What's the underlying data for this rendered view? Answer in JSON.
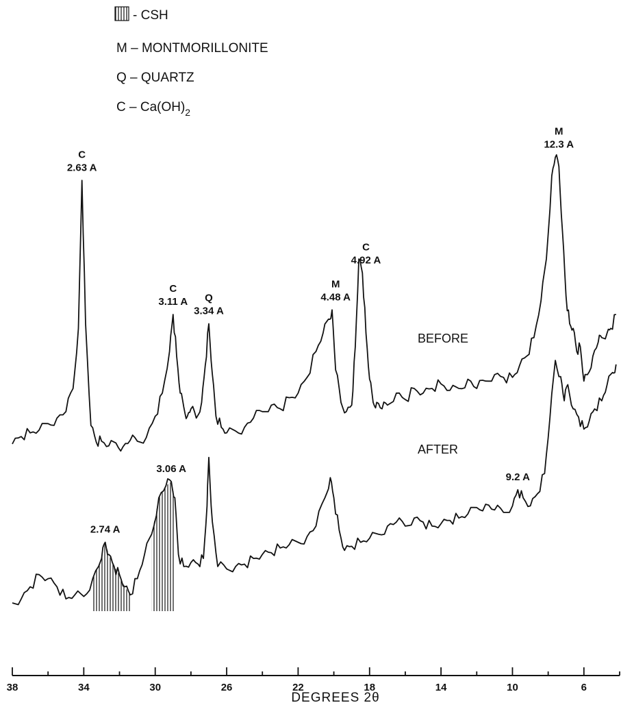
{
  "chart_data": {
    "type": "line",
    "title": "",
    "xlabel": "DEGREES 2θ",
    "ylabel": "",
    "xlim": [
      38,
      4
    ],
    "x_direction": "decreasing",
    "grid": false,
    "legend": {
      "placement": "top-left",
      "items": [
        {
          "symbol": "hatch",
          "text": "- CSH"
        },
        {
          "symbol": "",
          "text": "M – MONTMORILLONITE"
        },
        {
          "symbol": "",
          "text": "Q – QUARTZ"
        },
        {
          "symbol": "",
          "text": "C – Ca(OH)",
          "subscript": "2"
        }
      ]
    },
    "x_ticks": [
      38,
      34,
      30,
      26,
      22,
      18,
      14,
      10,
      6
    ],
    "series": [
      {
        "name": "BEFORE",
        "x": [
          38.0,
          37.5,
          37.0,
          36.5,
          36.0,
          35.5,
          35.0,
          34.6,
          34.3,
          34.1,
          33.9,
          33.6,
          33.3,
          33.0,
          32.6,
          32.2,
          31.8,
          31.4,
          31.0,
          30.5,
          30.0,
          29.6,
          29.2,
          29.0,
          28.8,
          28.6,
          28.4,
          28.2,
          28.0,
          27.7,
          27.4,
          27.2,
          27.0,
          26.8,
          26.6,
          26.3,
          26.0,
          25.5,
          25.0,
          24.5,
          24.0,
          23.5,
          23.0,
          22.5,
          22.0,
          21.5,
          21.0,
          20.6,
          20.3,
          20.1,
          19.9,
          19.6,
          19.3,
          19.0,
          18.8,
          18.6,
          18.4,
          18.2,
          18.0,
          17.8,
          17.6,
          17.3,
          17.0,
          16.5,
          16.0,
          15.5,
          15.0,
          14.5,
          14.0,
          13.5,
          13.0,
          12.5,
          12.0,
          11.5,
          11.0,
          10.5,
          10.0,
          9.6,
          9.2,
          8.8,
          8.4,
          8.1,
          7.8,
          7.6,
          7.4,
          7.2,
          7.0,
          6.8,
          6.6,
          6.4,
          6.2,
          6.0,
          5.8,
          5.5,
          5.2,
          5.0,
          4.7,
          4.5,
          4.2
        ],
        "y": [
          0.0,
          0.08,
          0.12,
          0.15,
          0.22,
          0.28,
          0.35,
          0.6,
          1.25,
          2.85,
          1.3,
          0.2,
          0.02,
          0.03,
          -0.02,
          0.01,
          -0.03,
          0.04,
          0.03,
          0.07,
          0.3,
          0.55,
          1.0,
          1.4,
          0.95,
          0.55,
          0.4,
          0.3,
          0.38,
          0.28,
          0.45,
          0.85,
          1.3,
          0.75,
          0.3,
          0.18,
          0.12,
          0.14,
          0.18,
          0.28,
          0.35,
          0.42,
          0.38,
          0.5,
          0.55,
          0.72,
          1.0,
          1.2,
          1.35,
          1.45,
          0.8,
          0.45,
          0.35,
          0.42,
          1.05,
          2.0,
          1.85,
          1.2,
          0.7,
          0.45,
          0.45,
          0.38,
          0.42,
          0.55,
          0.48,
          0.6,
          0.55,
          0.6,
          0.65,
          0.58,
          0.6,
          0.7,
          0.6,
          0.68,
          0.75,
          0.72,
          0.72,
          0.85,
          0.95,
          1.15,
          1.55,
          2.0,
          2.9,
          3.1,
          3.0,
          2.3,
          1.6,
          1.3,
          1.25,
          1.0,
          1.05,
          0.68,
          0.75,
          0.95,
          1.1,
          1.15,
          1.2,
          1.25,
          1.4
        ],
        "annotations": [
          {
            "x": 34.1,
            "labels": [
              "C",
              "2.63 A"
            ]
          },
          {
            "x": 29.0,
            "labels": [
              "C",
              "3.11 A"
            ]
          },
          {
            "x": 27.0,
            "labels": [
              "Q",
              "3.34 A"
            ]
          },
          {
            "x": 19.9,
            "labels": [
              "M",
              "4.48 A"
            ]
          },
          {
            "x": 18.2,
            "labels": [
              "C",
              "4.92 A"
            ]
          },
          {
            "x": 7.4,
            "labels": [
              "M",
              "12.3 A"
            ]
          }
        ]
      },
      {
        "name": "AFTER",
        "x": [
          38.0,
          37.5,
          37.0,
          36.5,
          36.0,
          35.5,
          35.0,
          34.5,
          34.0,
          33.5,
          33.0,
          32.8,
          32.6,
          32.3,
          32.0,
          31.7,
          31.4,
          31.0,
          30.6,
          30.2,
          29.8,
          29.4,
          29.1,
          28.9,
          28.7,
          28.4,
          28.0,
          27.6,
          27.3,
          27.1,
          27.0,
          26.8,
          26.5,
          26.0,
          25.5,
          25.0,
          24.5,
          24.0,
          23.5,
          23.0,
          22.5,
          22.0,
          21.5,
          21.0,
          20.5,
          20.2,
          20.0,
          19.7,
          19.4,
          19.0,
          18.5,
          18.0,
          17.5,
          17.0,
          16.5,
          16.0,
          15.5,
          15.0,
          14.5,
          14.0,
          13.5,
          13.0,
          12.5,
          12.0,
          11.5,
          11.0,
          10.5,
          10.0,
          9.7,
          9.4,
          9.0,
          8.6,
          8.2,
          7.9,
          7.6,
          7.3,
          7.1,
          6.9,
          6.6,
          6.3,
          6.0,
          5.7,
          5.4,
          5.0,
          4.7,
          4.4,
          4.2
        ],
        "y": [
          0.0,
          0.05,
          0.2,
          0.35,
          0.3,
          0.2,
          0.05,
          0.1,
          0.08,
          0.3,
          0.55,
          0.75,
          0.6,
          0.45,
          0.35,
          0.2,
          0.1,
          0.3,
          0.6,
          0.85,
          1.3,
          1.45,
          1.5,
          1.3,
          0.6,
          0.45,
          0.5,
          0.48,
          0.55,
          1.2,
          1.8,
          1.0,
          0.45,
          0.42,
          0.45,
          0.48,
          0.55,
          0.6,
          0.62,
          0.68,
          0.72,
          0.75,
          0.82,
          0.95,
          1.3,
          1.55,
          1.3,
          0.9,
          0.65,
          0.7,
          0.75,
          0.8,
          0.85,
          0.95,
          1.0,
          0.95,
          1.05,
          1.0,
          0.95,
          0.98,
          1.02,
          1.05,
          1.1,
          1.18,
          1.22,
          1.15,
          1.12,
          1.2,
          1.4,
          1.3,
          1.2,
          1.35,
          1.6,
          2.3,
          3.0,
          2.8,
          2.5,
          2.7,
          2.4,
          2.3,
          2.15,
          2.25,
          2.4,
          2.5,
          2.7,
          2.85,
          2.95
        ],
        "annotations": [
          {
            "x": 32.8,
            "labels": [
              "2.74 A"
            ]
          },
          {
            "x": 29.1,
            "labels": [
              "3.06 A"
            ]
          },
          {
            "x": 9.7,
            "labels": [
              "9.2 A"
            ]
          }
        ],
        "hatched_regions": [
          [
            33.5,
            31.4
          ],
          [
            30.2,
            28.9
          ]
        ]
      }
    ]
  }
}
